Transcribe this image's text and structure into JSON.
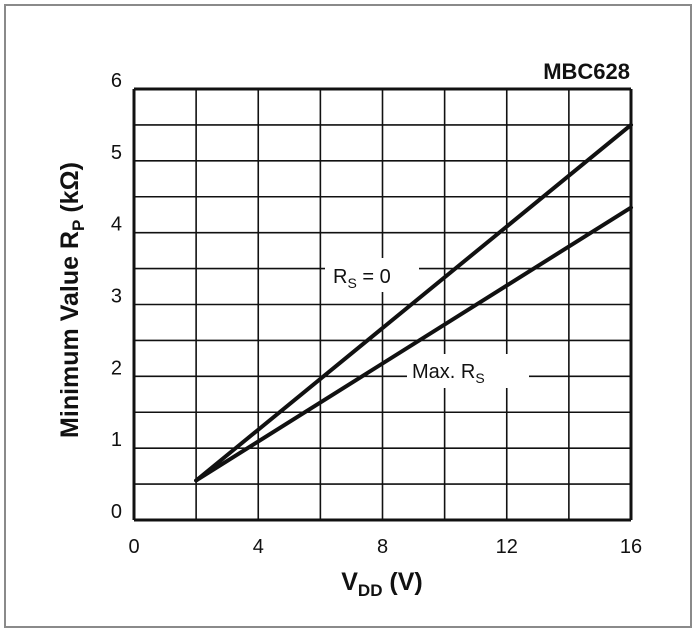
{
  "chart_data": {
    "type": "line",
    "title": "",
    "code": "MBC628",
    "xlabel": {
      "main": "V",
      "sub": "DD",
      "unit": " (V)"
    },
    "ylabel": {
      "main": "Minimum Value R",
      "sub": "P",
      "unit": " (kΩ)"
    },
    "xlim": [
      0,
      16
    ],
    "ylim": [
      0,
      6
    ],
    "x_ticks": [
      0,
      4,
      8,
      12,
      16
    ],
    "y_ticks": [
      0,
      1,
      2,
      3,
      4,
      5,
      6
    ],
    "x_grid_step": 2,
    "y_grid_step": 0.5,
    "grid": true,
    "series": [
      {
        "label": {
          "main": "R",
          "sub": "S",
          "rest": " = 0"
        },
        "x": [
          2,
          16
        ],
        "y": [
          0.55,
          5.5
        ]
      },
      {
        "label": {
          "main": "Max. R",
          "sub": "S",
          "rest": ""
        },
        "x": [
          2,
          16
        ],
        "y": [
          0.55,
          4.35
        ]
      }
    ],
    "colors": {
      "line": "#111111",
      "grid": "#111111",
      "frame": "#8a8a8a"
    }
  }
}
